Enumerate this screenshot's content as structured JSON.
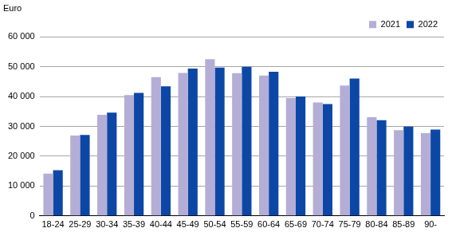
{
  "chart_data": {
    "type": "bar",
    "y_label": "Euro",
    "categories": [
      "18-24",
      "25-29",
      "30-34",
      "35-39",
      "40-44",
      "45-49",
      "50-54",
      "55-59",
      "60-64",
      "65-69",
      "70-74",
      "75-79",
      "80-84",
      "85-89",
      "90-"
    ],
    "series": [
      {
        "name": "2021",
        "color": "#b4aed6",
        "values": [
          14200,
          26900,
          33900,
          40500,
          46500,
          47900,
          52500,
          47800,
          47000,
          39500,
          38000,
          43700,
          33100,
          28700,
          27700
        ]
      },
      {
        "name": "2022",
        "color": "#0d47a6",
        "values": [
          15300,
          27100,
          34600,
          41200,
          43400,
          49400,
          49700,
          50000,
          48300,
          40000,
          37500,
          46000,
          32100,
          29900,
          28900
        ]
      }
    ],
    "ylim": [
      0,
      60000
    ],
    "yticks": [
      0,
      {
        "value": 10000,
        "label": "10 000"
      },
      {
        "value": 20000,
        "label": "20 000"
      },
      {
        "value": 30000,
        "label": "30 000"
      },
      {
        "value": 40000,
        "label": "40 000"
      },
      {
        "value": 50000,
        "label": "50 000"
      },
      {
        "value": 60000,
        "label": "60 000"
      }
    ],
    "grid": true,
    "legend": "top-right"
  }
}
